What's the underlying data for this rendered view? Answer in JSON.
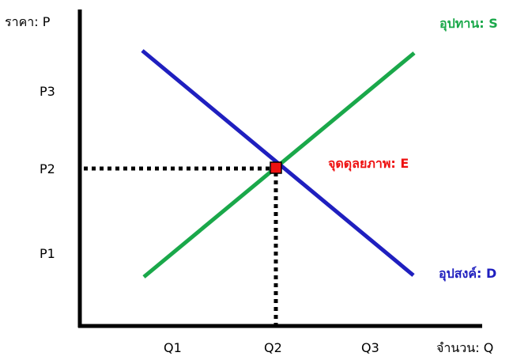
{
  "diagram": {
    "y_axis_label": "ราคา: P",
    "x_axis_label": "จำนวน: Q",
    "price_ticks": [
      "P1",
      "P2",
      "P3"
    ],
    "quantity_ticks": [
      "Q1",
      "Q2",
      "Q3"
    ],
    "supply_label": "อุปทาน: S",
    "demand_label": "อุปสงค์: D",
    "equilibrium_label": "จุดดุลยภาพ: E",
    "colors": {
      "axis": "#000000",
      "supply": "#1aa84a",
      "demand": "#1f1fbf",
      "equilibrium": "#ee1111",
      "text": "#000000"
    }
  }
}
